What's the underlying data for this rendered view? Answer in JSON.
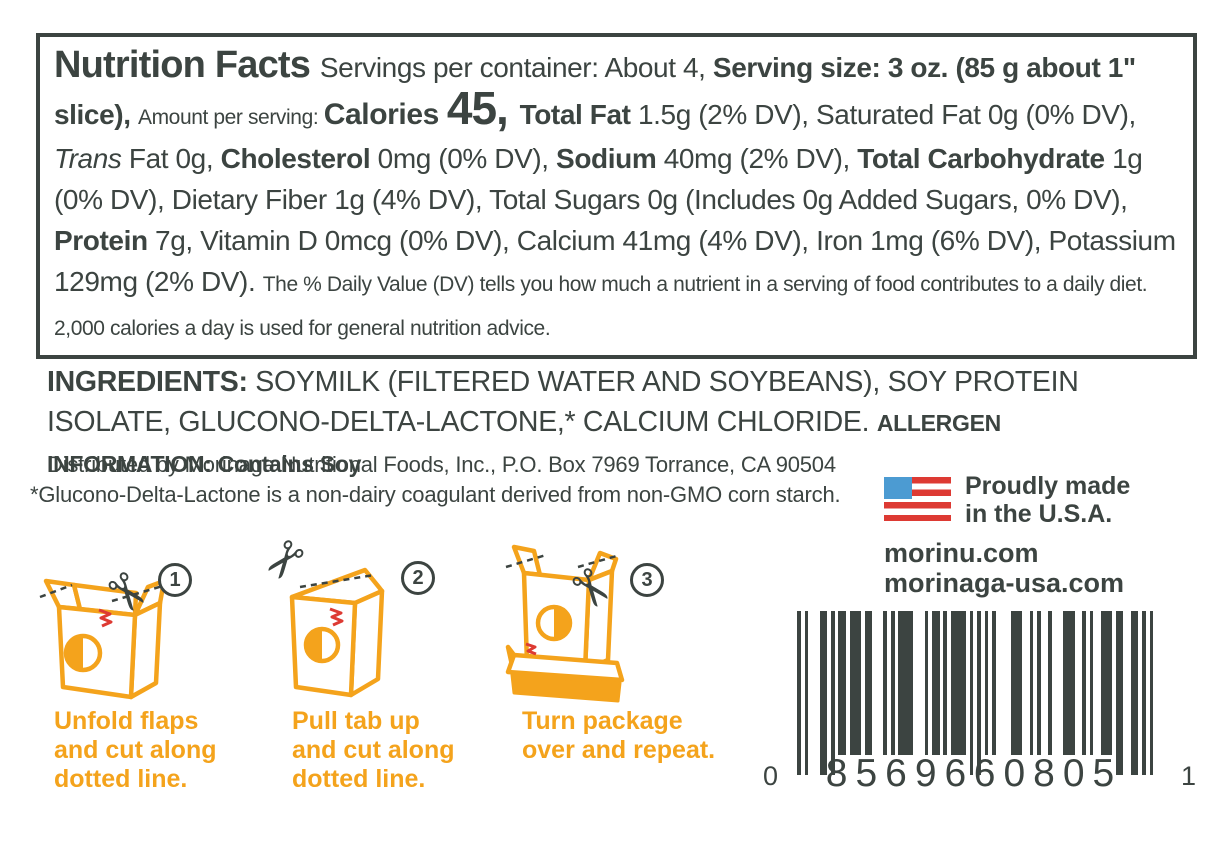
{
  "colors": {
    "dark": "#3c4441",
    "orange": "#f4a31c",
    "red": "#dd3a33",
    "flag_blue": "#4c9bd2"
  },
  "nutrition_panel": {
    "segments": [
      "Nutrition Facts ",
      "Servings per container: About 4, ",
      "Serving size: 3 oz. (85 g about 1\" slice), ",
      "Amount per serving: ",
      "Calories ",
      "45, ",
      "Total Fat ",
      "1.5g (2% DV), Saturated Fat 0g (0% DV), ",
      "Trans",
      " Fat 0g, ",
      "Cholesterol ",
      "0mg (0% DV), ",
      "Sodium ",
      "40mg (2% DV), ",
      "Total Carbohydrate ",
      "1g (0% DV), Dietary Fiber 1g (4% DV), Total Sugars 0g (Includes 0g Added Sugars, 0% DV), ",
      "Protein ",
      "7g, Vitamin D 0mcg (0% DV), Calcium 41mg (4% DV), Iron 1mg (6% DV), Potassium 129mg (2% DV). ",
      "The % Daily Value (DV) tells you how much a nutrient in a serving of food contributes to a daily diet. 2,000 calories a day is used for general nutrition advice."
    ]
  },
  "ingredients": {
    "label": "INGREDIENTS: ",
    "text": "SOYMILK (FILTERED WATER AND SOYBEANS), SOY PROTEIN ISOLATE, GLUCONO-DELTA-LACTONE,* CALCIUM CHLORIDE. ",
    "allergen": "ALLERGEN INFORMATION: Contains Soy"
  },
  "distribution": {
    "line1": "Distributed by Morinaga Nutritional Foods, Inc., P.O. Box 7969 Torrance, CA 90504",
    "line2": "*Glucono-Delta-Lactone is a non-dairy coagulant derived from non-GMO corn starch."
  },
  "made_in": {
    "label": "Proudly made\nin the U.S.A."
  },
  "websites": {
    "url1": "morinu.com",
    "url2": "morinaga-usa.com"
  },
  "barcode": {
    "left_digit": "0",
    "group1": "85696",
    "group2": "60805",
    "right_digit": "1",
    "pattern": "10100011010110111011000101011110001011010111101010101000011100101001000111001010011101100110101"
  },
  "steps": [
    {
      "number": "1",
      "caption": "Unfold flaps\nand cut along\ndotted line."
    },
    {
      "number": "2",
      "caption": "Pull tab up\nand cut along\ndotted line."
    },
    {
      "number": "3",
      "caption": "Turn package\nover and repeat."
    }
  ]
}
